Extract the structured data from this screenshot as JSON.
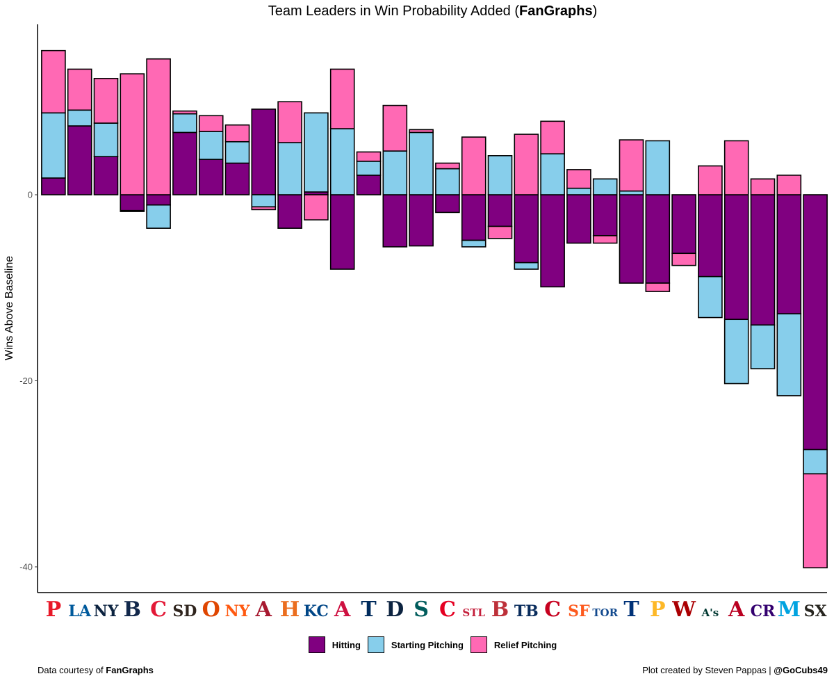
{
  "chart_data": {
    "type": "bar",
    "stacked": true,
    "title_prefix": "Team Leaders in Win Probability Added (",
    "title_bold": "FanGraphs",
    "title_suffix": ")",
    "xlabel": "",
    "ylabel": "Wins Above Baseline",
    "ylim": [
      -42.7,
      18.6
    ],
    "yticks": [
      0,
      -20,
      -40
    ],
    "grid": false,
    "legend_position": "bottom",
    "series": [
      {
        "name": "Hitting",
        "color": "#800080"
      },
      {
        "name": "Starting Pitching",
        "color": "#87CEEB"
      },
      {
        "name": "Relief Pitching",
        "color": "#FF69B4"
      }
    ],
    "teams": [
      {
        "logo": "P",
        "color": "#E81828",
        "hitting": 1.8,
        "starting": 7.0,
        "relief": 6.7
      },
      {
        "logo": "LA",
        "color": "#005A9C",
        "hitting": 7.4,
        "starting": 1.7,
        "relief": 4.4
      },
      {
        "logo": "NY",
        "color": "#0C2340",
        "hitting": 4.1,
        "starting": 3.6,
        "relief": 4.8
      },
      {
        "logo": "B",
        "color": "#12284B",
        "hitting": -1.7,
        "starting": -0.1,
        "relief": 13.0
      },
      {
        "logo": "C",
        "color": "#E31937",
        "hitting": -1.1,
        "starting": -2.5,
        "relief": 14.6
      },
      {
        "logo": "SD",
        "color": "#2F241D",
        "hitting": 6.7,
        "starting": 2.0,
        "relief": 0.3
      },
      {
        "logo": "O",
        "color": "#DF4601",
        "hitting": 3.8,
        "starting": 3.0,
        "relief": 1.7
      },
      {
        "logo": "NY",
        "color": "#FF5910",
        "hitting": 3.4,
        "starting": 2.3,
        "relief": 1.8
      },
      {
        "logo": "A",
        "color": "#A71930",
        "hitting": 9.2,
        "starting": -1.3,
        "relief": -0.3
      },
      {
        "logo": "H",
        "color": "#EB6E1F",
        "hitting": -3.6,
        "starting": 5.6,
        "relief": 4.4
      },
      {
        "logo": "KC",
        "color": "#004687",
        "hitting": 0.3,
        "starting": 8.5,
        "relief": -2.7
      },
      {
        "logo": "A",
        "color": "#CE1141",
        "hitting": -8.0,
        "starting": 7.1,
        "relief": 6.4
      },
      {
        "logo": "T",
        "color": "#002B5C",
        "hitting": 2.1,
        "starting": 1.5,
        "relief": 1.0
      },
      {
        "logo": "D",
        "color": "#0C2340",
        "hitting": -5.6,
        "starting": 4.7,
        "relief": 4.9
      },
      {
        "logo": "S",
        "color": "#005C5C",
        "hitting": -5.5,
        "starting": 6.7,
        "relief": 0.3
      },
      {
        "logo": "C",
        "color": "#E50022",
        "hitting": -1.9,
        "starting": 2.8,
        "relief": 0.6
      },
      {
        "logo": "STL",
        "color": "#C41E3A",
        "hitting": -4.9,
        "starting": -0.7,
        "relief": 6.2
      },
      {
        "logo": "B",
        "color": "#BD3039",
        "hitting": -3.4,
        "starting": 4.2,
        "relief": -1.3
      },
      {
        "logo": "TB",
        "color": "#092C5C",
        "hitting": -7.3,
        "starting": -0.7,
        "relief": 6.5
      },
      {
        "logo": "C",
        "color": "#C6011F",
        "hitting": -9.9,
        "starting": 4.4,
        "relief": 3.5
      },
      {
        "logo": "SF",
        "color": "#FD5A1E",
        "hitting": -5.2,
        "starting": 0.7,
        "relief": 2.0
      },
      {
        "logo": "TOR",
        "color": "#134A8E",
        "hitting": -4.4,
        "starting": 1.7,
        "relief": -0.8
      },
      {
        "logo": "T",
        "color": "#003278",
        "hitting": -9.5,
        "starting": 0.4,
        "relief": 5.5
      },
      {
        "logo": "P",
        "color": "#FDB827",
        "hitting": -9.5,
        "starting": 5.8,
        "relief": -0.9
      },
      {
        "logo": "W",
        "color": "#AB0003",
        "hitting": -6.3,
        "starting": 0.0,
        "relief": -1.3
      },
      {
        "logo": "A's",
        "color": "#003831",
        "hitting": -8.8,
        "starting": -4.4,
        "relief": 3.1
      },
      {
        "logo": "A",
        "color": "#BA0021",
        "hitting": -13.4,
        "starting": -6.9,
        "relief": 5.8
      },
      {
        "logo": "CR",
        "color": "#33006F",
        "hitting": -14.0,
        "starting": -4.7,
        "relief": 1.7
      },
      {
        "logo": "M",
        "color": "#00A3E0",
        "hitting": -12.8,
        "starting": -8.8,
        "relief": 2.1
      },
      {
        "logo": "SX",
        "color": "#27251F",
        "hitting": -27.4,
        "starting": -2.6,
        "relief": -10.1
      }
    ]
  },
  "footer": {
    "left_prefix": "Data courtesy of ",
    "left_bold": "FanGraphs",
    "right_prefix": "Plot created by Steven Pappas | ",
    "right_bold": "@GoCubs49"
  }
}
